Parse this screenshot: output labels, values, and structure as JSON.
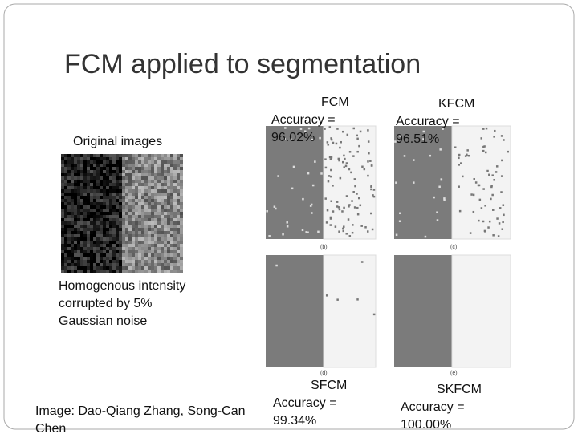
{
  "title": "FCM applied to segmentation",
  "original": {
    "label": "Original images",
    "description": "Homogenous intensity corrupted by 5% Gaussian noise"
  },
  "panels": [
    {
      "method": "FCM",
      "accuracy": "Accuracy = 96.02%",
      "caption": "(b)"
    },
    {
      "method": "KFCM",
      "accuracy": "Accuracy = 96.51%",
      "caption": "(c)"
    },
    {
      "method": "SFCM",
      "accuracy": "Accuracy = 99.34%",
      "caption": "(d)"
    },
    {
      "method": "SKFCM",
      "accuracy": "Accuracy = 100.00%",
      "caption": "(e)"
    }
  ],
  "credit": "Image: Dao-Qiang Zhang, Song-Can Chen"
}
